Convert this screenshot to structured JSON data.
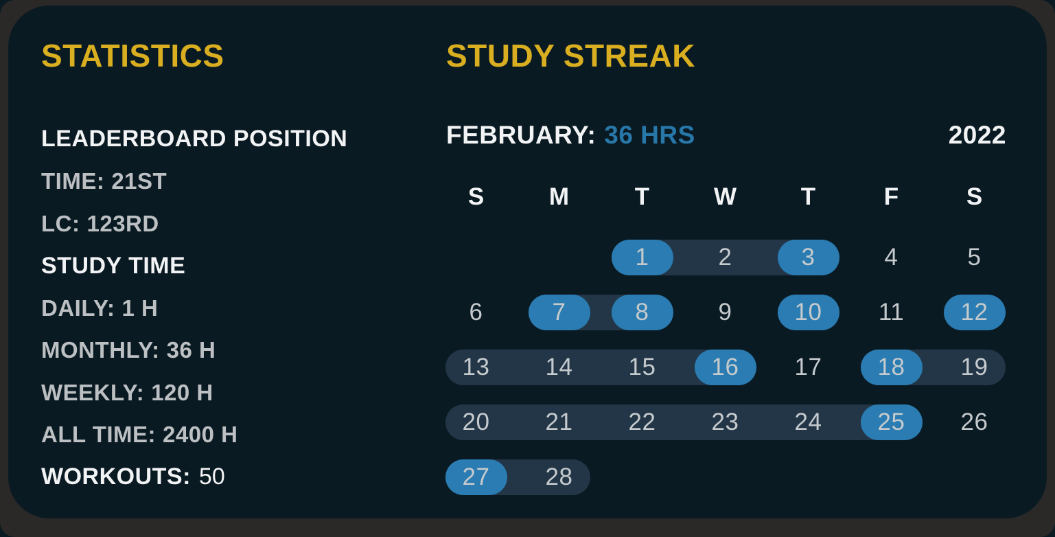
{
  "colors": {
    "navy": "#0a1a23",
    "frame": "#2b2927",
    "yellow": "#d9ae20",
    "white": "#f2f3f4",
    "muted": "#bcc0c3",
    "blue": "#2a7cb2",
    "blue_text": "#2777a9",
    "band": "#233648",
    "day_number": "#c5cacd"
  },
  "statistics": {
    "title": "STATISTICS",
    "rows": [
      {
        "label": "LEADERBOARD POSITION",
        "value": ""
      },
      {
        "label": "TIME:",
        "value": "21ST"
      },
      {
        "label": "LC:",
        "value": "123RD"
      },
      {
        "label": "STUDY TIME",
        "value": ""
      },
      {
        "label": "DAILY:",
        "value": "1 H"
      },
      {
        "label": "MONTHLY:",
        "value": "36 H"
      },
      {
        "label": "WEEKLY:",
        "value": "120 H"
      },
      {
        "label": "ALL TIME:",
        "value": "2400 H"
      },
      {
        "label": "WORKOUTS:",
        "value": "50"
      }
    ]
  },
  "study_streak": {
    "title": "STUDY STREAK",
    "month_label": "FEBRUARY:",
    "month_hours": "36 HRS",
    "year": "2022",
    "weekdays": [
      "S",
      "M",
      "T",
      "W",
      "T",
      "F",
      "S"
    ],
    "calendar": {
      "first_day_column": 2,
      "days_in_month": 28,
      "highlighted_days": [
        1,
        3,
        7,
        8,
        10,
        12,
        16,
        18,
        25,
        27
      ],
      "streak_bands": [
        [
          1,
          3
        ],
        [
          7,
          8
        ],
        [
          13,
          16
        ],
        [
          18,
          19
        ],
        [
          20,
          25
        ],
        [
          27,
          28
        ]
      ]
    }
  }
}
